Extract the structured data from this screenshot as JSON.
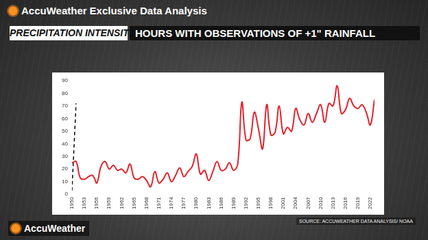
{
  "header": {
    "brand": "AccuWeather",
    "tagline": "Exclusive Data Analysis"
  },
  "chart_data": {
    "type": "line",
    "subtitle": "PRECIPITATION INTENSITY",
    "title": "HOURS WITH OBSERVATIONS OF +1\" RAINFALL",
    "categories": [
      "1950",
      null,
      null,
      "1953",
      null,
      null,
      "1956",
      null,
      null,
      "1959",
      null,
      null,
      "1962",
      null,
      null,
      "1965",
      null,
      null,
      "1968",
      null,
      null,
      "1971",
      null,
      null,
      "1974",
      null,
      null,
      "1977",
      null,
      null,
      "1980",
      null,
      null,
      "1983",
      null,
      null,
      "1986",
      null,
      null,
      "1989",
      null,
      null,
      "1992",
      null,
      null,
      "1995",
      null,
      null,
      "1998",
      null,
      null,
      "2001",
      null,
      null,
      "2004",
      null,
      null,
      "2007",
      null,
      null,
      "2010",
      null,
      null,
      "2013",
      null,
      null,
      "2016",
      null,
      null,
      "2019",
      null,
      null,
      "2022",
      null
    ],
    "series": [
      {
        "color": "#e3222b",
        "line_style": "solid",
        "marker": "none",
        "values": [
          25,
          26,
          13,
          12,
          14,
          15,
          9,
          22,
          26,
          20,
          23,
          19,
          20,
          17,
          24,
          13,
          12,
          14,
          11,
          6,
          18,
          9,
          12,
          17,
          10,
          15,
          21,
          14,
          18,
          22,
          32,
          16,
          19,
          11,
          18,
          26,
          19,
          20,
          25,
          19,
          24,
          73,
          43,
          44,
          65,
          52,
          36,
          71,
          47,
          49,
          70,
          48,
          53,
          50,
          68,
          59,
          55,
          64,
          57,
          64,
          71,
          57,
          72,
          70,
          86,
          64,
          67,
          76,
          70,
          68,
          71,
          65,
          55,
          75
        ]
      }
    ],
    "trendline": {
      "color": "#000000",
      "line_style": "dashed",
      "values": [
        3,
        72
      ]
    },
    "ylim": [
      0,
      90
    ],
    "yticks": [
      0,
      10,
      20,
      30,
      40,
      50,
      60,
      70,
      80,
      90
    ],
    "grid": false,
    "source": "SOURCE: ACCUWEATHER DATA ANALYSIS/ NOAA"
  },
  "footer": {
    "brand": "AccuWeather"
  }
}
